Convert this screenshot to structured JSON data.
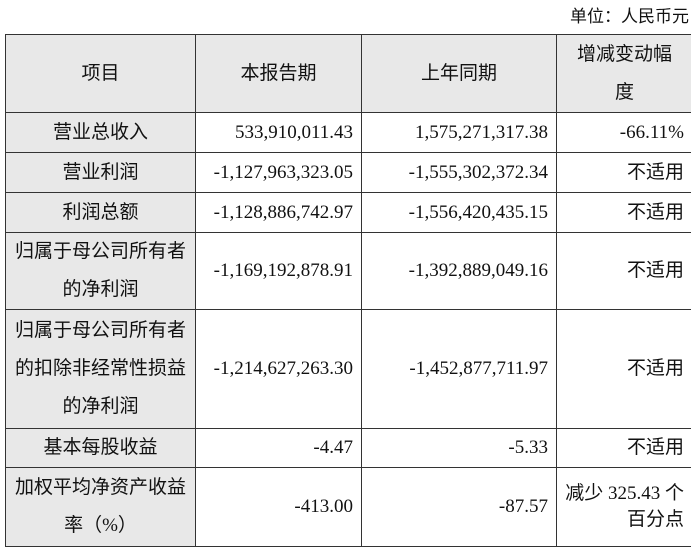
{
  "unit_label": "单位：人民币元",
  "header": [
    "项目",
    "本报告期",
    "上年同期",
    "增减变动幅度"
  ],
  "rows": [
    {
      "item": "营业总收入",
      "current": "533,910,011.43",
      "prior": "1,575,271,317.38",
      "change": "-66.11%"
    },
    {
      "item": "营业利润",
      "current": "-1,127,963,323.05",
      "prior": "-1,555,302,372.34",
      "change": "不适用"
    },
    {
      "item": "利润总额",
      "current": "-1,128,886,742.97",
      "prior": "-1,556,420,435.15",
      "change": "不适用"
    },
    {
      "item": "归属于母公司所有者的净利润",
      "current": "-1,169,192,878.91",
      "prior": "-1,392,889,049.16",
      "change": "不适用"
    },
    {
      "item": "归属于母公司所有者的扣除非经常性损益的净利润",
      "current": "-1,214,627,263.30",
      "prior": "-1,452,877,711.97",
      "change": "不适用"
    },
    {
      "item": "基本每股收益",
      "current": "-4.47",
      "prior": "-5.33",
      "change": "不适用"
    },
    {
      "item": "加权平均净资产收益率（%）",
      "current": "-413.00",
      "prior": "-87.57",
      "change": "减少 325.43 个百分点"
    }
  ]
}
